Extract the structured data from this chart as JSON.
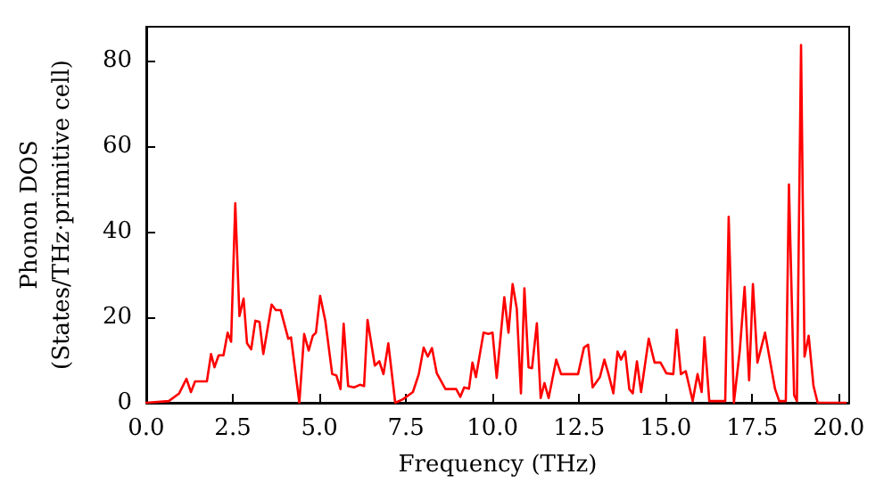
{
  "chart_data": {
    "type": "line",
    "xlabel": "Frequency (THz)",
    "ylabel": "Phonon DOS\n(States/THz·primitive cell)",
    "xlim": [
      0,
      20.3
    ],
    "xticks": [
      {
        "value": 0,
        "label": "0.0"
      },
      {
        "value": 2.5,
        "label": "2.5"
      },
      {
        "value": 5,
        "label": "5.0"
      },
      {
        "value": 7.5,
        "label": "7.5"
      },
      {
        "value": 10,
        "label": "10.0"
      },
      {
        "value": 12.5,
        "label": "12.5"
      },
      {
        "value": 15,
        "label": "15.0"
      },
      {
        "value": 17.5,
        "label": "17.5"
      },
      {
        "value": 20,
        "label": "20.0"
      }
    ],
    "ylim": [
      0,
      88
    ],
    "yticks": [
      0,
      20,
      40,
      60,
      80
    ],
    "grid": false,
    "marker": "none",
    "line_style": "solid",
    "series": [
      {
        "color": "#ff0000",
        "x": [
          0,
          0.65,
          0.95,
          1.16,
          1.29,
          1.41,
          1.75,
          1.87,
          1.97,
          2.09,
          2.23,
          2.35,
          2.45,
          2.57,
          2.69,
          2.81,
          2.91,
          3.03,
          3.15,
          3.27,
          3.38,
          3.62,
          3.74,
          3.88,
          4.1,
          4.18,
          4.42,
          4.56,
          4.69,
          4.81,
          4.9,
          5.02,
          5.17,
          5.37,
          5.49,
          5.61,
          5.7,
          5.83,
          6.0,
          6.17,
          6.29,
          6.39,
          6.6,
          6.73,
          6.85,
          6.99,
          7.19,
          7.41,
          7.7,
          7.87,
          8.01,
          8.13,
          8.25,
          8.39,
          8.64,
          8.95,
          9.07,
          9.18,
          9.32,
          9.42,
          9.52,
          9.74,
          9.88,
          10.0,
          10.12,
          10.34,
          10.46,
          10.58,
          10.7,
          10.82,
          10.92,
          11.04,
          11.14,
          11.28,
          11.39,
          11.5,
          11.62,
          11.84,
          11.98,
          12.47,
          12.64,
          12.76,
          12.89,
          13.1,
          13.23,
          13.35,
          13.49,
          13.61,
          13.71,
          13.83,
          13.95,
          14.05,
          14.17,
          14.29,
          14.51,
          14.68,
          14.85,
          15.02,
          15.22,
          15.32,
          15.44,
          15.58,
          15.78,
          15.92,
          16.04,
          16.12,
          16.26,
          16.72,
          16.82,
          16.97,
          17.14,
          17.28,
          17.41,
          17.52,
          17.65,
          17.87,
          18.16,
          18.28,
          18.47,
          18.56,
          18.71,
          18.79,
          18.91,
          19.01,
          19.13,
          19.27,
          19.39,
          20.2
        ],
        "values": [
          0,
          0.4,
          2.2,
          5.6,
          2.5,
          5,
          5,
          11.4,
          8.3,
          11.1,
          11.1,
          16.4,
          14.3,
          46.7,
          20.3,
          24.4,
          13.9,
          12.5,
          19.2,
          18.9,
          11.4,
          23,
          21.7,
          21.7,
          15,
          15.3,
          0,
          16.1,
          12.2,
          15.7,
          16.4,
          25,
          19.2,
          6.7,
          6.4,
          3.2,
          18.5,
          3.9,
          3.6,
          4.2,
          3.9,
          19.4,
          8.7,
          9.7,
          6.7,
          13.9,
          0,
          0.8,
          2.5,
          6.7,
          12.9,
          10.8,
          12.8,
          6.9,
          3.2,
          3.2,
          1.4,
          3.6,
          3.3,
          9.4,
          6,
          16.4,
          16.1,
          16.4,
          5.8,
          24.7,
          16.4,
          27.8,
          22,
          2.2,
          26.8,
          8.3,
          8.1,
          18.6,
          1.1,
          4.6,
          1.1,
          10.1,
          6.7,
          6.7,
          12.9,
          13.6,
          3.6,
          6,
          10.1,
          6.7,
          2.2,
          12,
          10.1,
          12,
          3.2,
          2.2,
          9.7,
          2.5,
          15,
          9.4,
          9.4,
          6.9,
          6.7,
          17.1,
          6.7,
          7.4,
          0.4,
          6.7,
          2.5,
          15.3,
          0.4,
          0.4,
          43.5,
          0,
          12.2,
          27.1,
          5.3,
          27.8,
          9.4,
          16.4,
          3.2,
          0.4,
          0.4,
          51.1,
          1.8,
          0.4,
          83.7,
          10.8,
          15.7,
          3.9,
          0,
          0
        ]
      }
    ]
  }
}
